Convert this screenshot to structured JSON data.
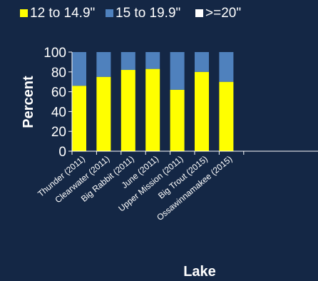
{
  "colors": {
    "background": "#142745",
    "series": [
      "#ffff00",
      "#4f81bd",
      "#ffffff"
    ],
    "text": "#ffffff"
  },
  "chart_data": {
    "type": "bar",
    "stacked": true,
    "categories": [
      "Thunder (2011)",
      "Clearwater (2011)",
      "Big Rabbit (2011)",
      "June (2011)",
      "Upper Mission (2011)",
      "Big Trout (2015)",
      "Ossawinnamakee (2015)"
    ],
    "series": [
      {
        "name": "12 to 14.9\"",
        "values": [
          66,
          75,
          82,
          83,
          62,
          80,
          70
        ]
      },
      {
        "name": "15 to 19.9\"",
        "values": [
          34,
          25,
          18,
          17,
          38,
          20,
          30
        ]
      },
      {
        "name": ">=20\"",
        "values": [
          0,
          0,
          0,
          0,
          0,
          0,
          0
        ]
      }
    ],
    "xlabel": "Lake",
    "ylabel": "Percent",
    "ylim": [
      0,
      100
    ],
    "yticks": [
      "0",
      "20",
      "40",
      "60",
      "80",
      "100"
    ],
    "grid": false,
    "legend": "top"
  }
}
